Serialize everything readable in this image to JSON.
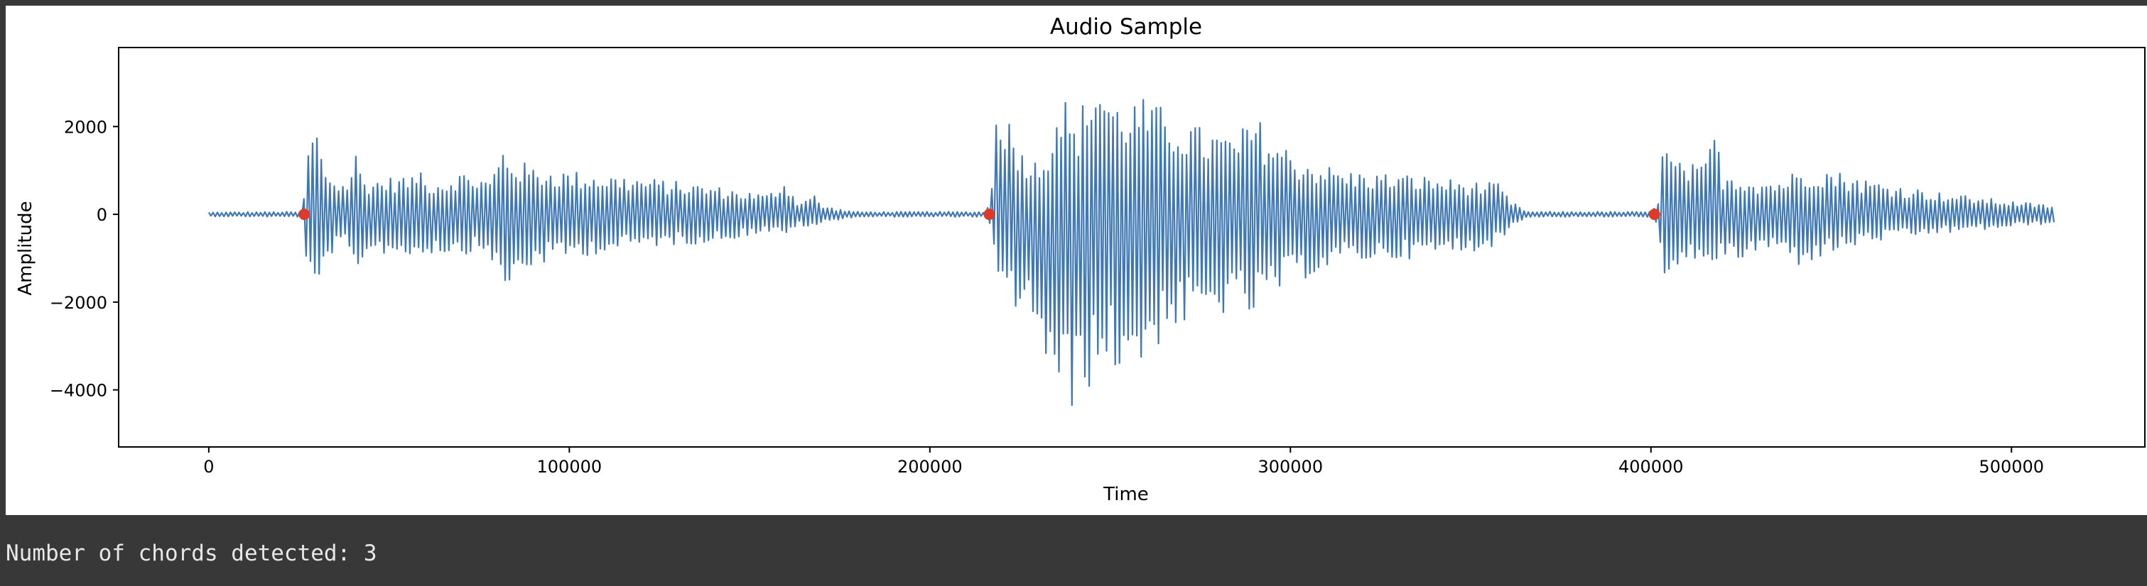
{
  "cell_output": {
    "text": "Number of chords detected: 3"
  },
  "chart_data": {
    "type": "line",
    "title": "Audio Sample",
    "xlabel": "Time",
    "ylabel": "Amplitude",
    "xlim": [
      -25000,
      537000
    ],
    "ylim": [
      -5300,
      3800
    ],
    "xticks": [
      0,
      100000,
      200000,
      300000,
      400000,
      500000
    ],
    "xtick_labels": [
      "0",
      "100000",
      "200000",
      "300000",
      "400000",
      "500000"
    ],
    "yticks": [
      2000,
      0,
      -2000,
      -4000
    ],
    "ytick_labels": [
      "2000",
      "0",
      "−2000",
      "−4000"
    ],
    "grid": false,
    "colors": {
      "waveform": "#3f78b4",
      "markers": "#dd3a2a"
    },
    "series": [
      {
        "kind": "waveform_envelope",
        "length": 512000,
        "upper": [
          [
            0,
            50
          ],
          [
            26000,
            60
          ],
          [
            27500,
            1500
          ],
          [
            29500,
            2250
          ],
          [
            31500,
            1300
          ],
          [
            34000,
            900
          ],
          [
            38000,
            700
          ],
          [
            41000,
            1500
          ],
          [
            43000,
            800
          ],
          [
            50000,
            850
          ],
          [
            55000,
            900
          ],
          [
            57000,
            800
          ],
          [
            58000,
            1300
          ],
          [
            60000,
            800
          ],
          [
            66000,
            800
          ],
          [
            69000,
            1000
          ],
          [
            74000,
            900
          ],
          [
            78000,
            800
          ],
          [
            82000,
            1650
          ],
          [
            84000,
            1300
          ],
          [
            90000,
            1100
          ],
          [
            100000,
            1000
          ],
          [
            120000,
            850
          ],
          [
            140000,
            650
          ],
          [
            155000,
            450
          ],
          [
            160000,
            850
          ],
          [
            163000,
            300
          ],
          [
            168000,
            450
          ],
          [
            170000,
            200
          ],
          [
            176000,
            100
          ],
          [
            180000,
            60
          ],
          [
            215000,
            60
          ],
          [
            217000,
            300
          ],
          [
            218500,
            3200
          ],
          [
            221000,
            2400
          ],
          [
            225000,
            1600
          ],
          [
            230000,
            1200
          ],
          [
            234000,
            2000
          ],
          [
            236000,
            3100
          ],
          [
            240000,
            2000
          ],
          [
            246000,
            3400
          ],
          [
            252000,
            2600
          ],
          [
            258000,
            2700
          ],
          [
            266000,
            2400
          ],
          [
            275000,
            2000
          ],
          [
            285000,
            1800
          ],
          [
            290000,
            2300
          ],
          [
            295000,
            1800
          ],
          [
            303000,
            1300
          ],
          [
            315000,
            1000
          ],
          [
            335000,
            900
          ],
          [
            350000,
            750
          ],
          [
            358000,
            700
          ],
          [
            361000,
            300
          ],
          [
            366000,
            60
          ],
          [
            400000,
            60
          ],
          [
            402000,
            400
          ],
          [
            403500,
            1700
          ],
          [
            407000,
            1200
          ],
          [
            415000,
            1100
          ],
          [
            417000,
            2200
          ],
          [
            420000,
            1000
          ],
          [
            430000,
            800
          ],
          [
            436000,
            800
          ],
          [
            440000,
            1000
          ],
          [
            447000,
            1100
          ],
          [
            460000,
            800
          ],
          [
            480000,
            500
          ],
          [
            500000,
            300
          ],
          [
            512000,
            200
          ]
        ],
        "lower": [
          [
            0,
            -50
          ],
          [
            26000,
            -60
          ],
          [
            27500,
            -1500
          ],
          [
            29500,
            -2300
          ],
          [
            31500,
            -1500
          ],
          [
            34000,
            -900
          ],
          [
            38000,
            -800
          ],
          [
            41000,
            -1600
          ],
          [
            43000,
            -900
          ],
          [
            50000,
            -900
          ],
          [
            55000,
            -1000
          ],
          [
            60000,
            -900
          ],
          [
            66000,
            -900
          ],
          [
            74000,
            -900
          ],
          [
            78000,
            -900
          ],
          [
            82000,
            -2050
          ],
          [
            84000,
            -1600
          ],
          [
            90000,
            -1200
          ],
          [
            100000,
            -1000
          ],
          [
            120000,
            -750
          ],
          [
            140000,
            -650
          ],
          [
            155000,
            -400
          ],
          [
            160000,
            -550
          ],
          [
            163000,
            -250
          ],
          [
            168000,
            -350
          ],
          [
            170000,
            -200
          ],
          [
            176000,
            -100
          ],
          [
            180000,
            -60
          ],
          [
            215000,
            -60
          ],
          [
            217000,
            -300
          ],
          [
            218500,
            -1900
          ],
          [
            221000,
            -2100
          ],
          [
            225000,
            -2200
          ],
          [
            230000,
            -2700
          ],
          [
            234000,
            -4200
          ],
          [
            236000,
            -4900
          ],
          [
            240000,
            -4400
          ],
          [
            246000,
            -3800
          ],
          [
            252000,
            -3600
          ],
          [
            258000,
            -3600
          ],
          [
            266000,
            -2700
          ],
          [
            275000,
            -2500
          ],
          [
            285000,
            -2200
          ],
          [
            290000,
            -2400
          ],
          [
            295000,
            -1900
          ],
          [
            303000,
            -1500
          ],
          [
            315000,
            -1100
          ],
          [
            335000,
            -1000
          ],
          [
            350000,
            -850
          ],
          [
            358000,
            -700
          ],
          [
            361000,
            -300
          ],
          [
            366000,
            -60
          ],
          [
            400000,
            -60
          ],
          [
            402000,
            -400
          ],
          [
            403500,
            -2000
          ],
          [
            407000,
            -1400
          ],
          [
            415000,
            -1000
          ],
          [
            420000,
            -1200
          ],
          [
            430000,
            -900
          ],
          [
            436000,
            -800
          ],
          [
            440000,
            -1200
          ],
          [
            447000,
            -1000
          ],
          [
            460000,
            -650
          ],
          [
            480000,
            -450
          ],
          [
            500000,
            -300
          ],
          [
            512000,
            -200
          ]
        ]
      },
      {
        "kind": "scatter",
        "points": [
          [
            26500,
            0
          ],
          [
            216500,
            0
          ],
          [
            401000,
            0
          ]
        ]
      }
    ]
  }
}
